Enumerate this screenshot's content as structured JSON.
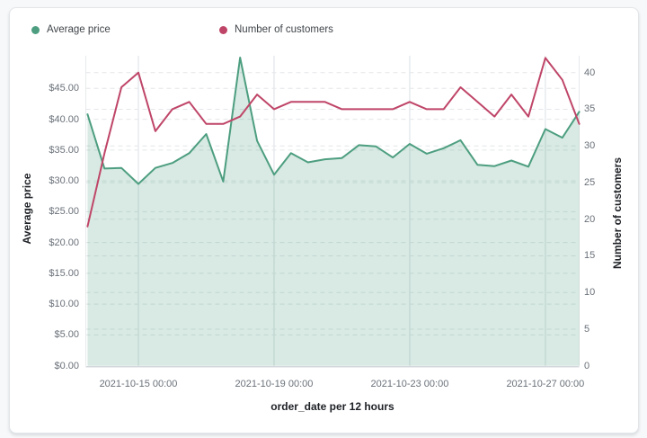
{
  "legend": {
    "items": [
      {
        "label": "Average price",
        "color": "#4d9e80"
      },
      {
        "label": "Number of customers",
        "color": "#bf4568"
      }
    ]
  },
  "left_axis": {
    "title": "Average price",
    "ticks": [
      "$0.00",
      "$5.00",
      "$10.00",
      "$15.00",
      "$20.00",
      "$25.00",
      "$30.00",
      "$35.00",
      "$40.00",
      "$45.00"
    ]
  },
  "right_axis": {
    "title": "Number of customers",
    "ticks": [
      "0",
      "5",
      "10",
      "15",
      "20",
      "25",
      "30",
      "35",
      "40"
    ]
  },
  "x_axis": {
    "title": "order_date per 12 hours",
    "ticks": [
      "2021-10-15 00:00",
      "2021-10-19 00:00",
      "2021-10-23 00:00",
      "2021-10-27 00:00"
    ],
    "tick_indices": [
      3,
      11,
      19,
      27
    ]
  },
  "colors": {
    "price_line": "#4d9e80",
    "price_fill": "rgba(77,158,128,0.22)",
    "customers_line": "#bf4568",
    "grid_dash": "#e3e6e9",
    "grid_vertical": "#e7eaed",
    "axis_bottom": "#d4d8dc",
    "plot_edge": "#e6e9ec"
  },
  "chart_data": {
    "type": "area",
    "x_label": "order_date per 12 hours",
    "x_interval": "12 hours",
    "x": [
      "2021-10-13 12:00",
      "2021-10-14 00:00",
      "2021-10-14 12:00",
      "2021-10-15 00:00",
      "2021-10-15 12:00",
      "2021-10-16 00:00",
      "2021-10-16 12:00",
      "2021-10-17 00:00",
      "2021-10-17 12:00",
      "2021-10-18 00:00",
      "2021-10-18 12:00",
      "2021-10-19 00:00",
      "2021-10-19 12:00",
      "2021-10-20 00:00",
      "2021-10-20 12:00",
      "2021-10-21 00:00",
      "2021-10-21 12:00",
      "2021-10-22 00:00",
      "2021-10-22 12:00",
      "2021-10-23 00:00",
      "2021-10-23 12:00",
      "2021-10-24 00:00",
      "2021-10-24 12:00",
      "2021-10-25 00:00",
      "2021-10-25 12:00",
      "2021-10-26 00:00",
      "2021-10-26 12:00",
      "2021-10-27 00:00",
      "2021-10-27 12:00",
      "2021-10-28 00:00"
    ],
    "series": [
      {
        "name": "Average price",
        "type": "area",
        "axis": "left",
        "color": "#4d9e80",
        "values": [
          40.8,
          32.0,
          32.1,
          29.5,
          32.1,
          32.9,
          34.5,
          37.6,
          29.9,
          50.0,
          36.5,
          31.0,
          34.5,
          33.0,
          33.5,
          33.7,
          35.8,
          35.6,
          33.8,
          36.0,
          34.4,
          35.3,
          36.6,
          32.6,
          32.4,
          33.3,
          32.3,
          38.4,
          37.0,
          41.2
        ]
      },
      {
        "name": "Number of customers",
        "type": "line",
        "axis": "right",
        "color": "#bf4568",
        "values": [
          19,
          29,
          38,
          40,
          32,
          35,
          36,
          33,
          33,
          34,
          37,
          35,
          36,
          36,
          36,
          35,
          35,
          35,
          35,
          36,
          35,
          35,
          38,
          36,
          34,
          37,
          34,
          42,
          39,
          33
        ]
      }
    ],
    "left_ylabel": "Average price",
    "right_ylabel": "Number of customers",
    "left_ylim": [
      0,
      50.3
    ],
    "right_ylim": [
      0,
      42.3
    ],
    "left_tick_step": 5,
    "right_tick_step": 5,
    "grid": "dashed horizontal (both axes) + solid vertical at date ticks",
    "legend_position": "top-left"
  }
}
